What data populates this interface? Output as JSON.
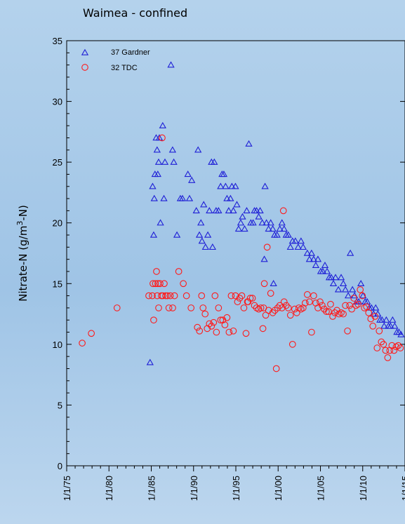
{
  "chart_data": {
    "type": "scatter",
    "title": "Waimea - confined",
    "ylabel": "Nitrate-N (g/m3-N)",
    "ylabel_parts": {
      "pre": "Nitrate-N (g/m",
      "sup": "3",
      "post": "-N)"
    },
    "xlabel": "",
    "x_scale": "date",
    "xlim": [
      "1975-01-01",
      "2015-01-01"
    ],
    "ylim": [
      0,
      35
    ],
    "y_ticks": [
      0,
      5,
      10,
      15,
      20,
      25,
      30,
      35
    ],
    "x_ticks": [
      {
        "date": "1975-01-01",
        "label": "1/1/75"
      },
      {
        "date": "1980-01-01",
        "label": "1/1/80"
      },
      {
        "date": "1985-01-01",
        "label": "1/1/85"
      },
      {
        "date": "1990-01-01",
        "label": "1/1/90"
      },
      {
        "date": "1995-01-01",
        "label": "1/1/95"
      },
      {
        "date": "2000-01-01",
        "label": "1/1/00"
      },
      {
        "date": "2005-01-01",
        "label": "1/1/05"
      },
      {
        "date": "2010-01-01",
        "label": "1/1/10"
      },
      {
        "date": "2015-01-01",
        "label": "1/1/15"
      }
    ],
    "legend": "top-left",
    "grid": false,
    "series": [
      {
        "name": "37 Gardner",
        "marker": "triangle",
        "color": "#1f1fd6",
        "points": [
          [
            "1984-11-10",
            8.5
          ],
          [
            "1985-03-01",
            23.0
          ],
          [
            "1985-04-15",
            19.0
          ],
          [
            "1985-05-10",
            22.0
          ],
          [
            "1985-06-10",
            24.0
          ],
          [
            "1985-08-01",
            27.0
          ],
          [
            "1985-09-10",
            26.0
          ],
          [
            "1985-10-10",
            24.0
          ],
          [
            "1985-11-15",
            25.0
          ],
          [
            "1985-12-15",
            27.0
          ],
          [
            "1986-02-01",
            20.0
          ],
          [
            "1986-05-10",
            28.0
          ],
          [
            "1986-07-01",
            22.0
          ],
          [
            "1986-08-15",
            25.0
          ],
          [
            "1987-05-01",
            33.0
          ],
          [
            "1987-07-10",
            26.0
          ],
          [
            "1987-09-01",
            25.0
          ],
          [
            "1988-01-15",
            19.0
          ],
          [
            "1988-06-10",
            22.0
          ],
          [
            "1988-09-10",
            22.0
          ],
          [
            "1989-05-01",
            24.0
          ],
          [
            "1989-07-10",
            22.0
          ],
          [
            "1989-10-15",
            23.5
          ],
          [
            "1990-05-01",
            21.0
          ],
          [
            "1990-07-15",
            26.0
          ],
          [
            "1990-09-10",
            19.0
          ],
          [
            "1990-11-15",
            20.0
          ],
          [
            "1991-01-01",
            18.5
          ],
          [
            "1991-03-15",
            21.5
          ],
          [
            "1991-06-01",
            18.0
          ],
          [
            "1991-09-10",
            19.0
          ],
          [
            "1991-11-15",
            21.0
          ],
          [
            "1992-02-15",
            25.0
          ],
          [
            "1992-04-01",
            18.0
          ],
          [
            "1992-06-15",
            25.0
          ],
          [
            "1992-09-01",
            21.0
          ],
          [
            "1992-12-15",
            21.0
          ],
          [
            "1993-03-15",
            23.0
          ],
          [
            "1993-05-15",
            24.0
          ],
          [
            "1993-08-01",
            24.0
          ],
          [
            "1993-10-15",
            23.0
          ],
          [
            "1993-12-15",
            22.0
          ],
          [
            "1994-03-01",
            21.0
          ],
          [
            "1994-05-15",
            22.0
          ],
          [
            "1994-07-15",
            23.0
          ],
          [
            "1994-09-15",
            21.0
          ],
          [
            "1994-12-15",
            23.0
          ],
          [
            "1995-02-15",
            21.5
          ],
          [
            "1995-05-01",
            19.5
          ],
          [
            "1995-08-01",
            20.0
          ],
          [
            "1995-10-15",
            20.5
          ],
          [
            "1996-01-15",
            19.5
          ],
          [
            "1996-04-15",
            21.0
          ],
          [
            "1996-07-15",
            26.5
          ],
          [
            "1996-10-10",
            20.0
          ],
          [
            "1997-01-15",
            20.0
          ],
          [
            "1997-03-15",
            21.0
          ],
          [
            "1997-06-15",
            21.0
          ],
          [
            "1997-09-15",
            20.5
          ],
          [
            "1997-11-15",
            21.0
          ],
          [
            "1998-02-15",
            20.0
          ],
          [
            "1998-05-15",
            17.0
          ],
          [
            "1998-06-15",
            23.0
          ],
          [
            "1998-08-15",
            20.0
          ],
          [
            "1998-11-15",
            19.5
          ],
          [
            "1999-02-15",
            20.0
          ],
          [
            "1999-05-15",
            19.5
          ],
          [
            "1999-06-15",
            15.0
          ],
          [
            "1999-08-01",
            19.0
          ],
          [
            "1999-11-15",
            19.0
          ],
          [
            "2000-03-15",
            19.5
          ],
          [
            "2000-06-15",
            20.0
          ],
          [
            "2000-09-15",
            19.5
          ],
          [
            "2000-12-15",
            19.0
          ],
          [
            "2001-03-15",
            19.0
          ],
          [
            "2001-06-15",
            18.0
          ],
          [
            "2001-09-15",
            18.5
          ],
          [
            "2002-01-15",
            18.5
          ],
          [
            "2002-05-15",
            18.0
          ],
          [
            "2002-09-15",
            18.5
          ],
          [
            "2002-12-15",
            18.0
          ],
          [
            "2003-06-15",
            17.5
          ],
          [
            "2003-09-15",
            17.0
          ],
          [
            "2003-12-15",
            17.5
          ],
          [
            "2004-03-15",
            17.0
          ],
          [
            "2004-06-15",
            16.5
          ],
          [
            "2004-09-15",
            17.0
          ],
          [
            "2005-01-15",
            16.0
          ],
          [
            "2005-04-15",
            16.0
          ],
          [
            "2005-07-15",
            16.5
          ],
          [
            "2005-10-15",
            16.0
          ],
          [
            "2006-01-15",
            15.5
          ],
          [
            "2006-04-15",
            15.5
          ],
          [
            "2006-07-15",
            15.0
          ],
          [
            "2006-10-15",
            15.5
          ],
          [
            "2007-02-15",
            14.5
          ],
          [
            "2007-06-15",
            15.5
          ],
          [
            "2007-09-15",
            15.0
          ],
          [
            "2007-12-15",
            14.5
          ],
          [
            "2008-04-15",
            14.0
          ],
          [
            "2008-07-15",
            17.5
          ],
          [
            "2008-10-15",
            14.5
          ],
          [
            "2009-01-15",
            14.0
          ],
          [
            "2009-04-15",
            13.5
          ],
          [
            "2009-07-15",
            13.5
          ],
          [
            "2009-10-15",
            15.0
          ],
          [
            "2010-01-15",
            14.0
          ],
          [
            "2010-04-15",
            13.5
          ],
          [
            "2010-07-15",
            13.5
          ],
          [
            "2010-10-15",
            13.0
          ],
          [
            "2011-01-15",
            13.0
          ],
          [
            "2011-04-15",
            12.5
          ],
          [
            "2011-07-15",
            13.0
          ],
          [
            "2011-10-15",
            12.5
          ],
          [
            "2012-01-15",
            12.0
          ],
          [
            "2012-04-15",
            12.0
          ],
          [
            "2012-07-15",
            11.5
          ],
          [
            "2012-10-15",
            12.0
          ],
          [
            "2013-01-15",
            11.5
          ],
          [
            "2013-04-15",
            11.5
          ],
          [
            "2013-07-15",
            12.0
          ],
          [
            "2013-10-15",
            11.5
          ],
          [
            "2014-01-15",
            11.0
          ],
          [
            "2014-04-15",
            11.0
          ],
          [
            "2014-07-15",
            10.8
          ]
        ]
      },
      {
        "name": "32 TDC",
        "marker": "circle",
        "color": "#ff1a1a",
        "points": [
          [
            "1976-11-01",
            10.1
          ],
          [
            "1977-12-01",
            10.9
          ],
          [
            "1980-12-15",
            13.0
          ],
          [
            "1984-09-15",
            14.0
          ],
          [
            "1985-02-15",
            14.0
          ],
          [
            "1985-03-15",
            15.0
          ],
          [
            "1985-04-15",
            12.0
          ],
          [
            "1985-07-01",
            15.0
          ],
          [
            "1985-08-15",
            16.0
          ],
          [
            "1985-09-15",
            14.0
          ],
          [
            "1985-10-15",
            15.0
          ],
          [
            "1985-11-15",
            13.0
          ],
          [
            "1986-01-15",
            15.0
          ],
          [
            "1986-03-15",
            14.0
          ],
          [
            "1986-04-15",
            27.0
          ],
          [
            "1986-05-15",
            14.0
          ],
          [
            "1986-07-15",
            15.0
          ],
          [
            "1986-09-15",
            14.0
          ],
          [
            "1986-12-01",
            14.0
          ],
          [
            "1987-02-01",
            13.0
          ],
          [
            "1987-04-01",
            14.0
          ],
          [
            "1987-07-15",
            13.0
          ],
          [
            "1987-10-01",
            14.0
          ],
          [
            "1988-04-01",
            16.0
          ],
          [
            "1988-10-15",
            15.0
          ],
          [
            "1989-03-01",
            14.0
          ],
          [
            "1989-09-15",
            13.0
          ],
          [
            "1990-06-15",
            11.4
          ],
          [
            "1990-09-15",
            11.1
          ],
          [
            "1990-12-15",
            14.0
          ],
          [
            "1991-02-15",
            13.0
          ],
          [
            "1991-05-15",
            12.5
          ],
          [
            "1991-08-15",
            11.3
          ],
          [
            "1991-11-15",
            11.7
          ],
          [
            "1992-02-15",
            11.5
          ],
          [
            "1992-05-15",
            11.8
          ],
          [
            "1992-07-15",
            14.0
          ],
          [
            "1992-09-15",
            11.0
          ],
          [
            "1992-12-15",
            13.0
          ],
          [
            "1993-03-15",
            12.0
          ],
          [
            "1993-06-15",
            12.0
          ],
          [
            "1993-09-15",
            11.6
          ],
          [
            "1993-12-15",
            12.2
          ],
          [
            "1994-03-15",
            11.0
          ],
          [
            "1994-06-15",
            14.0
          ],
          [
            "1994-09-15",
            11.1
          ],
          [
            "1994-12-15",
            14.0
          ],
          [
            "1995-03-15",
            13.5
          ],
          [
            "1995-06-15",
            13.8
          ],
          [
            "1995-09-15",
            14.0
          ],
          [
            "1995-12-15",
            13.0
          ],
          [
            "1996-03-15",
            10.9
          ],
          [
            "1996-05-15",
            13.5
          ],
          [
            "1996-06-15",
            13.5
          ],
          [
            "1996-09-15",
            13.8
          ],
          [
            "1996-12-15",
            13.8
          ],
          [
            "1997-03-15",
            13.2
          ],
          [
            "1997-06-15",
            13.0
          ],
          [
            "1997-09-15",
            12.9
          ],
          [
            "1997-12-15",
            13.0
          ],
          [
            "1998-03-15",
            11.3
          ],
          [
            "1998-04-15",
            13.0
          ],
          [
            "1998-05-15",
            15.0
          ],
          [
            "1998-07-15",
            12.4
          ],
          [
            "1998-09-15",
            18.0
          ],
          [
            "1998-11-15",
            12.8
          ],
          [
            "1999-02-15",
            14.2
          ],
          [
            "1999-05-15",
            12.6
          ],
          [
            "1999-08-15",
            12.8
          ],
          [
            "1999-10-15",
            8.0
          ],
          [
            "1999-12-15",
            13.0
          ],
          [
            "2000-03-15",
            13.2
          ],
          [
            "2000-06-15",
            13.0
          ],
          [
            "2000-08-15",
            21.0
          ],
          [
            "2000-09-15",
            13.5
          ],
          [
            "2000-12-15",
            13.2
          ],
          [
            "2001-03-15",
            13.0
          ],
          [
            "2001-06-15",
            12.4
          ],
          [
            "2001-09-15",
            10.0
          ],
          [
            "2001-12-15",
            12.9
          ],
          [
            "2002-03-15",
            12.6
          ],
          [
            "2002-06-15",
            13.0
          ],
          [
            "2002-09-15",
            12.9
          ],
          [
            "2002-12-15",
            13.0
          ],
          [
            "2003-03-15",
            13.4
          ],
          [
            "2003-06-15",
            14.1
          ],
          [
            "2003-09-15",
            13.5
          ],
          [
            "2003-12-15",
            11.0
          ],
          [
            "2004-03-15",
            14.0
          ],
          [
            "2004-06-15",
            13.4
          ],
          [
            "2004-09-15",
            13.0
          ],
          [
            "2004-12-15",
            13.5
          ],
          [
            "2005-03-15",
            13.2
          ],
          [
            "2005-06-15",
            12.9
          ],
          [
            "2005-09-15",
            12.7
          ],
          [
            "2005-12-15",
            12.7
          ],
          [
            "2006-03-15",
            13.3
          ],
          [
            "2006-06-15",
            12.3
          ],
          [
            "2006-09-15",
            12.6
          ],
          [
            "2006-12-15",
            12.8
          ],
          [
            "2007-03-15",
            12.5
          ],
          [
            "2007-06-15",
            12.6
          ],
          [
            "2007-09-15",
            12.5
          ],
          [
            "2007-12-15",
            13.2
          ],
          [
            "2008-03-15",
            11.1
          ],
          [
            "2008-06-15",
            13.2
          ],
          [
            "2008-09-15",
            12.9
          ],
          [
            "2008-12-15",
            13.8
          ],
          [
            "2009-03-15",
            13.2
          ],
          [
            "2009-06-15",
            13.3
          ],
          [
            "2009-09-15",
            14.5
          ],
          [
            "2009-12-15",
            14.0
          ],
          [
            "2010-03-15",
            13.0
          ],
          [
            "2010-06-15",
            13.1
          ],
          [
            "2010-09-15",
            12.6
          ],
          [
            "2010-12-15",
            12.1
          ],
          [
            "2011-03-15",
            11.5
          ],
          [
            "2011-06-15",
            12.3
          ],
          [
            "2011-09-15",
            9.7
          ],
          [
            "2011-12-15",
            11.1
          ],
          [
            "2012-03-15",
            10.2
          ],
          [
            "2012-06-15",
            10.0
          ],
          [
            "2012-09-15",
            9.5
          ],
          [
            "2012-12-15",
            8.9
          ],
          [
            "2013-03-15",
            9.5
          ],
          [
            "2013-06-15",
            9.9
          ],
          [
            "2013-09-15",
            9.5
          ],
          [
            "2013-12-15",
            9.8
          ],
          [
            "2014-03-15",
            9.9
          ],
          [
            "2014-06-15",
            9.7
          ]
        ]
      }
    ]
  }
}
